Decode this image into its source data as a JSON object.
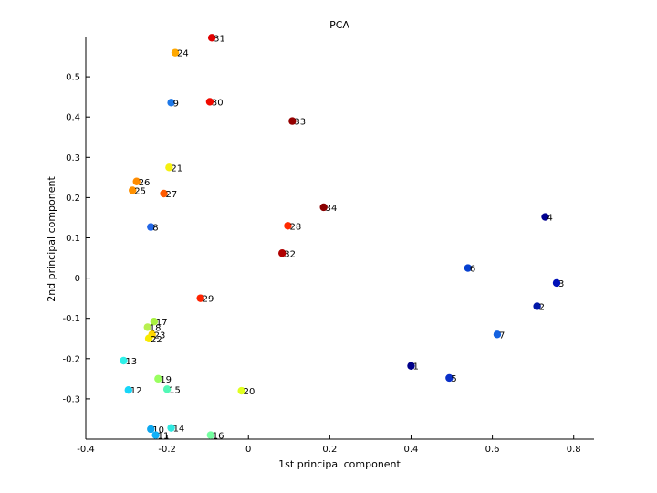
{
  "chart_data": {
    "type": "scatter",
    "title": "PCA",
    "xlabel": "1st principal component",
    "ylabel": "2nd principal component",
    "xlim": [
      -0.4,
      0.85
    ],
    "ylim": [
      -0.4,
      0.6
    ],
    "xticks": [
      -0.4,
      -0.2,
      0,
      0.2,
      0.4,
      0.6,
      0.8
    ],
    "xtick_labels": [
      "-0.4",
      "-0.2",
      "0",
      "0.2",
      "0.4",
      "0.6",
      "0.8"
    ],
    "yticks": [
      -0.3,
      -0.2,
      -0.1,
      0,
      0.1,
      0.2,
      0.3,
      0.4,
      0.5
    ],
    "ytick_labels": [
      "-0.3",
      "-0.2",
      "-0.1",
      "0",
      "0.1",
      "0.2",
      "0.3",
      "0.4",
      "0.5"
    ],
    "grid": false,
    "points": [
      {
        "label": "31",
        "x": -0.09,
        "y": 0.597,
        "color": "#e00000"
      },
      {
        "label": "24",
        "x": -0.18,
        "y": 0.56,
        "color": "#ffa800"
      },
      {
        "label": "30",
        "x": -0.095,
        "y": 0.438,
        "color": "#f00a00"
      },
      {
        "label": "9",
        "x": -0.19,
        "y": 0.436,
        "color": "#1e78e8"
      },
      {
        "label": "33",
        "x": 0.108,
        "y": 0.39,
        "color": "#950000"
      },
      {
        "label": "21",
        "x": -0.195,
        "y": 0.275,
        "color": "#f5f010"
      },
      {
        "label": "26",
        "x": -0.275,
        "y": 0.24,
        "color": "#ff8c00"
      },
      {
        "label": "25",
        "x": -0.285,
        "y": 0.218,
        "color": "#ff9000"
      },
      {
        "label": "27",
        "x": -0.208,
        "y": 0.21,
        "color": "#ff5a00"
      },
      {
        "label": "34",
        "x": 0.185,
        "y": 0.176,
        "color": "#8a0000"
      },
      {
        "label": "8",
        "x": -0.24,
        "y": 0.127,
        "color": "#2266e6"
      },
      {
        "label": "28",
        "x": 0.097,
        "y": 0.13,
        "color": "#ff2a00"
      },
      {
        "label": "32",
        "x": 0.083,
        "y": 0.062,
        "color": "#b00000"
      },
      {
        "label": "29",
        "x": -0.118,
        "y": -0.05,
        "color": "#ff2200"
      },
      {
        "label": "17",
        "x": -0.232,
        "y": -0.108,
        "color": "#a8f040"
      },
      {
        "label": "18",
        "x": -0.248,
        "y": -0.122,
        "color": "#b8f050"
      },
      {
        "label": "23",
        "x": -0.237,
        "y": -0.14,
        "color": "#ffd600"
      },
      {
        "label": "22",
        "x": -0.245,
        "y": -0.15,
        "color": "#f8ea00"
      },
      {
        "label": "13",
        "x": -0.307,
        "y": -0.205,
        "color": "#2ef0e8"
      },
      {
        "label": "19",
        "x": -0.222,
        "y": -0.25,
        "color": "#9aff60"
      },
      {
        "label": "12",
        "x": -0.295,
        "y": -0.278,
        "color": "#18d6f8"
      },
      {
        "label": "15",
        "x": -0.2,
        "y": -0.276,
        "color": "#52f8b6"
      },
      {
        "label": "20",
        "x": -0.017,
        "y": -0.28,
        "color": "#e0ff20"
      },
      {
        "label": "10",
        "x": -0.24,
        "y": -0.375,
        "color": "#0ea8f0"
      },
      {
        "label": "14",
        "x": -0.19,
        "y": -0.372,
        "color": "#30e8e0"
      },
      {
        "label": "11",
        "x": -0.228,
        "y": -0.39,
        "color": "#10b0f8"
      },
      {
        "label": "16",
        "x": -0.093,
        "y": -0.39,
        "color": "#74ffa0"
      },
      {
        "label": "4",
        "x": 0.73,
        "y": 0.152,
        "color": "#000090"
      },
      {
        "label": "6",
        "x": 0.54,
        "y": 0.025,
        "color": "#0640d0"
      },
      {
        "label": "3",
        "x": 0.758,
        "y": -0.012,
        "color": "#0010b8"
      },
      {
        "label": "2",
        "x": 0.71,
        "y": -0.07,
        "color": "#0018a8"
      },
      {
        "label": "7",
        "x": 0.612,
        "y": -0.14,
        "color": "#1462e0"
      },
      {
        "label": "1",
        "x": 0.4,
        "y": -0.218,
        "color": "#00008a"
      },
      {
        "label": "5",
        "x": 0.494,
        "y": -0.248,
        "color": "#0a30c8"
      }
    ]
  }
}
